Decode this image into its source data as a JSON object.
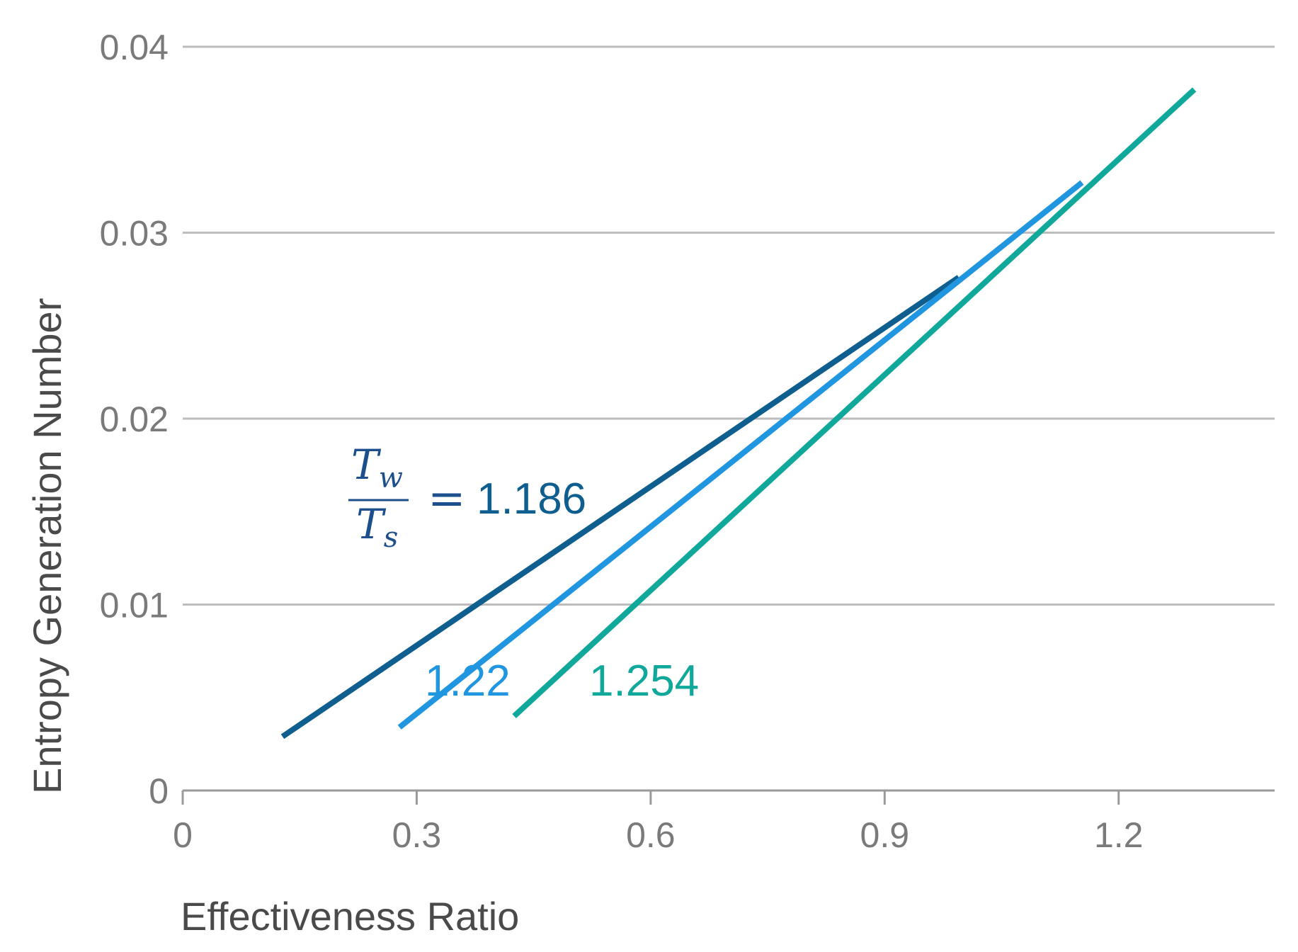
{
  "chart_data": {
    "type": "line",
    "title": "",
    "xlabel": "Effectiveness Ratio",
    "ylabel": "Entropy Generation Number",
    "xlim": [
      0,
      1.4
    ],
    "ylim": [
      0,
      0.04
    ],
    "x_ticks": [
      0,
      0.3,
      0.6,
      0.9,
      1.2
    ],
    "x_tick_labels": [
      "0",
      "0.3",
      "0.6",
      "0.9",
      "1.2"
    ],
    "y_ticks": [
      0,
      0.01,
      0.02,
      0.03,
      0.04
    ],
    "y_tick_labels": [
      "0",
      "0.01",
      "0.02",
      "0.03",
      "0.04"
    ],
    "grid": "horizontal",
    "series": [
      {
        "name": "1.186",
        "color": "#0e5f8f",
        "x": [
          0.128,
          0.995
        ],
        "y": [
          0.0029,
          0.0276
        ]
      },
      {
        "name": "1.22",
        "color": "#2196e0",
        "x": [
          0.278,
          1.153
        ],
        "y": [
          0.0034,
          0.0327
        ]
      },
      {
        "name": "1.254",
        "color": "#10a89a",
        "x": [
          0.425,
          1.297
        ],
        "y": [
          0.004,
          0.0377
        ]
      }
    ],
    "annotations": {
      "ratio_numerator": "T",
      "ratio_numerator_sub": "w",
      "ratio_denominator": "T",
      "ratio_denominator_sub": "s",
      "equals": "=",
      "label_1": "1.186",
      "label_2": "1.22",
      "label_3": "1.254"
    }
  }
}
